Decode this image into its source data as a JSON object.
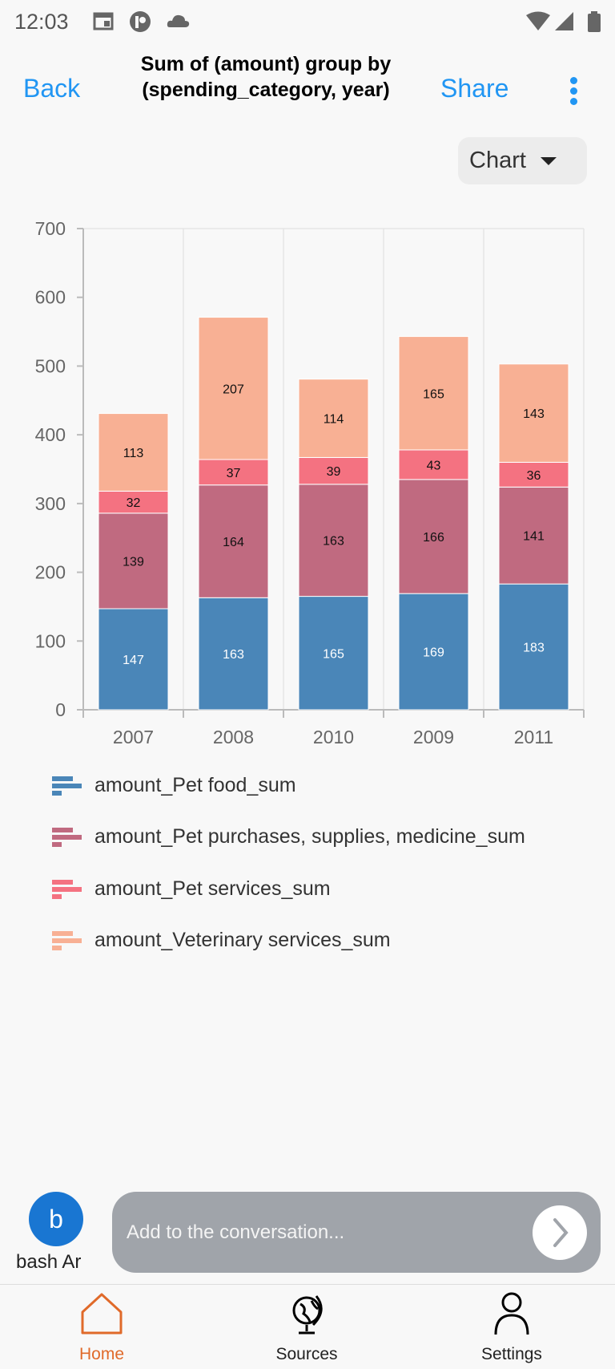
{
  "status_bar": {
    "time": "12:03",
    "icons": [
      "calendar-icon",
      "app-icon",
      "cloud-icon",
      "wifi-icon",
      "signal-icon",
      "battery-icon"
    ]
  },
  "header": {
    "back_label": "Back",
    "title_line1": "Sum of (amount)  group by",
    "title_line2": "(spending_category, year)",
    "share_label": "Share",
    "more_icon": "more-vertical-icon"
  },
  "view_selector": {
    "selected": "Chart"
  },
  "chart_data": {
    "type": "bar",
    "stacked": true,
    "categories": [
      "2007",
      "2008",
      "2010",
      "2009",
      "2011"
    ],
    "ylim": [
      0,
      700
    ],
    "yticks": [
      0,
      100,
      200,
      300,
      400,
      500,
      600,
      700
    ],
    "grid": "vertical",
    "legend_position": "bottom",
    "series": [
      {
        "name": "amount_Pet food_sum",
        "color": "#4a86b8",
        "label_color": "#ffffff",
        "values": [
          147,
          163,
          165,
          169,
          183
        ]
      },
      {
        "name": "amount_Pet purchases, supplies, medicine_sum",
        "color": "#c06a80",
        "label_color": "#111111",
        "values": [
          139,
          164,
          163,
          166,
          141
        ]
      },
      {
        "name": "amount_Pet services_sum",
        "color": "#f47281",
        "label_color": "#111111",
        "values": [
          32,
          37,
          39,
          43,
          36
        ]
      },
      {
        "name": "amount_Veterinary services_sum",
        "color": "#f8b094",
        "label_color": "#111111",
        "values": [
          113,
          207,
          114,
          165,
          143
        ]
      }
    ]
  },
  "composer": {
    "avatar_letter": "b",
    "username": "bash Ar",
    "placeholder": "Add to the conversation..."
  },
  "nav": [
    {
      "label": "Home",
      "icon": "home-icon",
      "active": true,
      "color": "#e06a2a"
    },
    {
      "label": "Sources",
      "icon": "globe-icon",
      "active": false
    },
    {
      "label": "Settings",
      "icon": "person-icon",
      "active": false
    }
  ]
}
